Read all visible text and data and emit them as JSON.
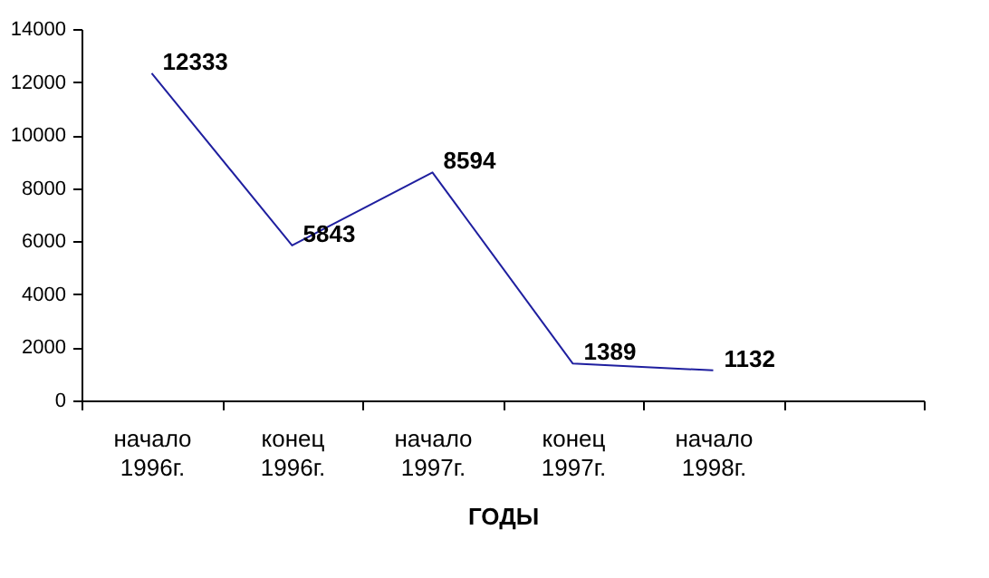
{
  "chart_data": {
    "type": "line",
    "xlabel": "ГОДЫ",
    "categories": [
      "начало 1996г.",
      "конец 1996г.",
      "начало 1997г.",
      "конец 1997г.",
      "начало 1998г.",
      null
    ],
    "series": [
      {
        "color": "#1f1f9f",
        "values": [
          12333,
          5843,
          8594,
          1389,
          1132,
          null
        ]
      }
    ],
    "ylim": [
      0,
      14000
    ],
    "yticks": [
      0,
      2000,
      4000,
      6000,
      8000,
      10000,
      12000,
      14000
    ],
    "grid": false,
    "legend": false,
    "marker": "none",
    "data_labels": true
  }
}
